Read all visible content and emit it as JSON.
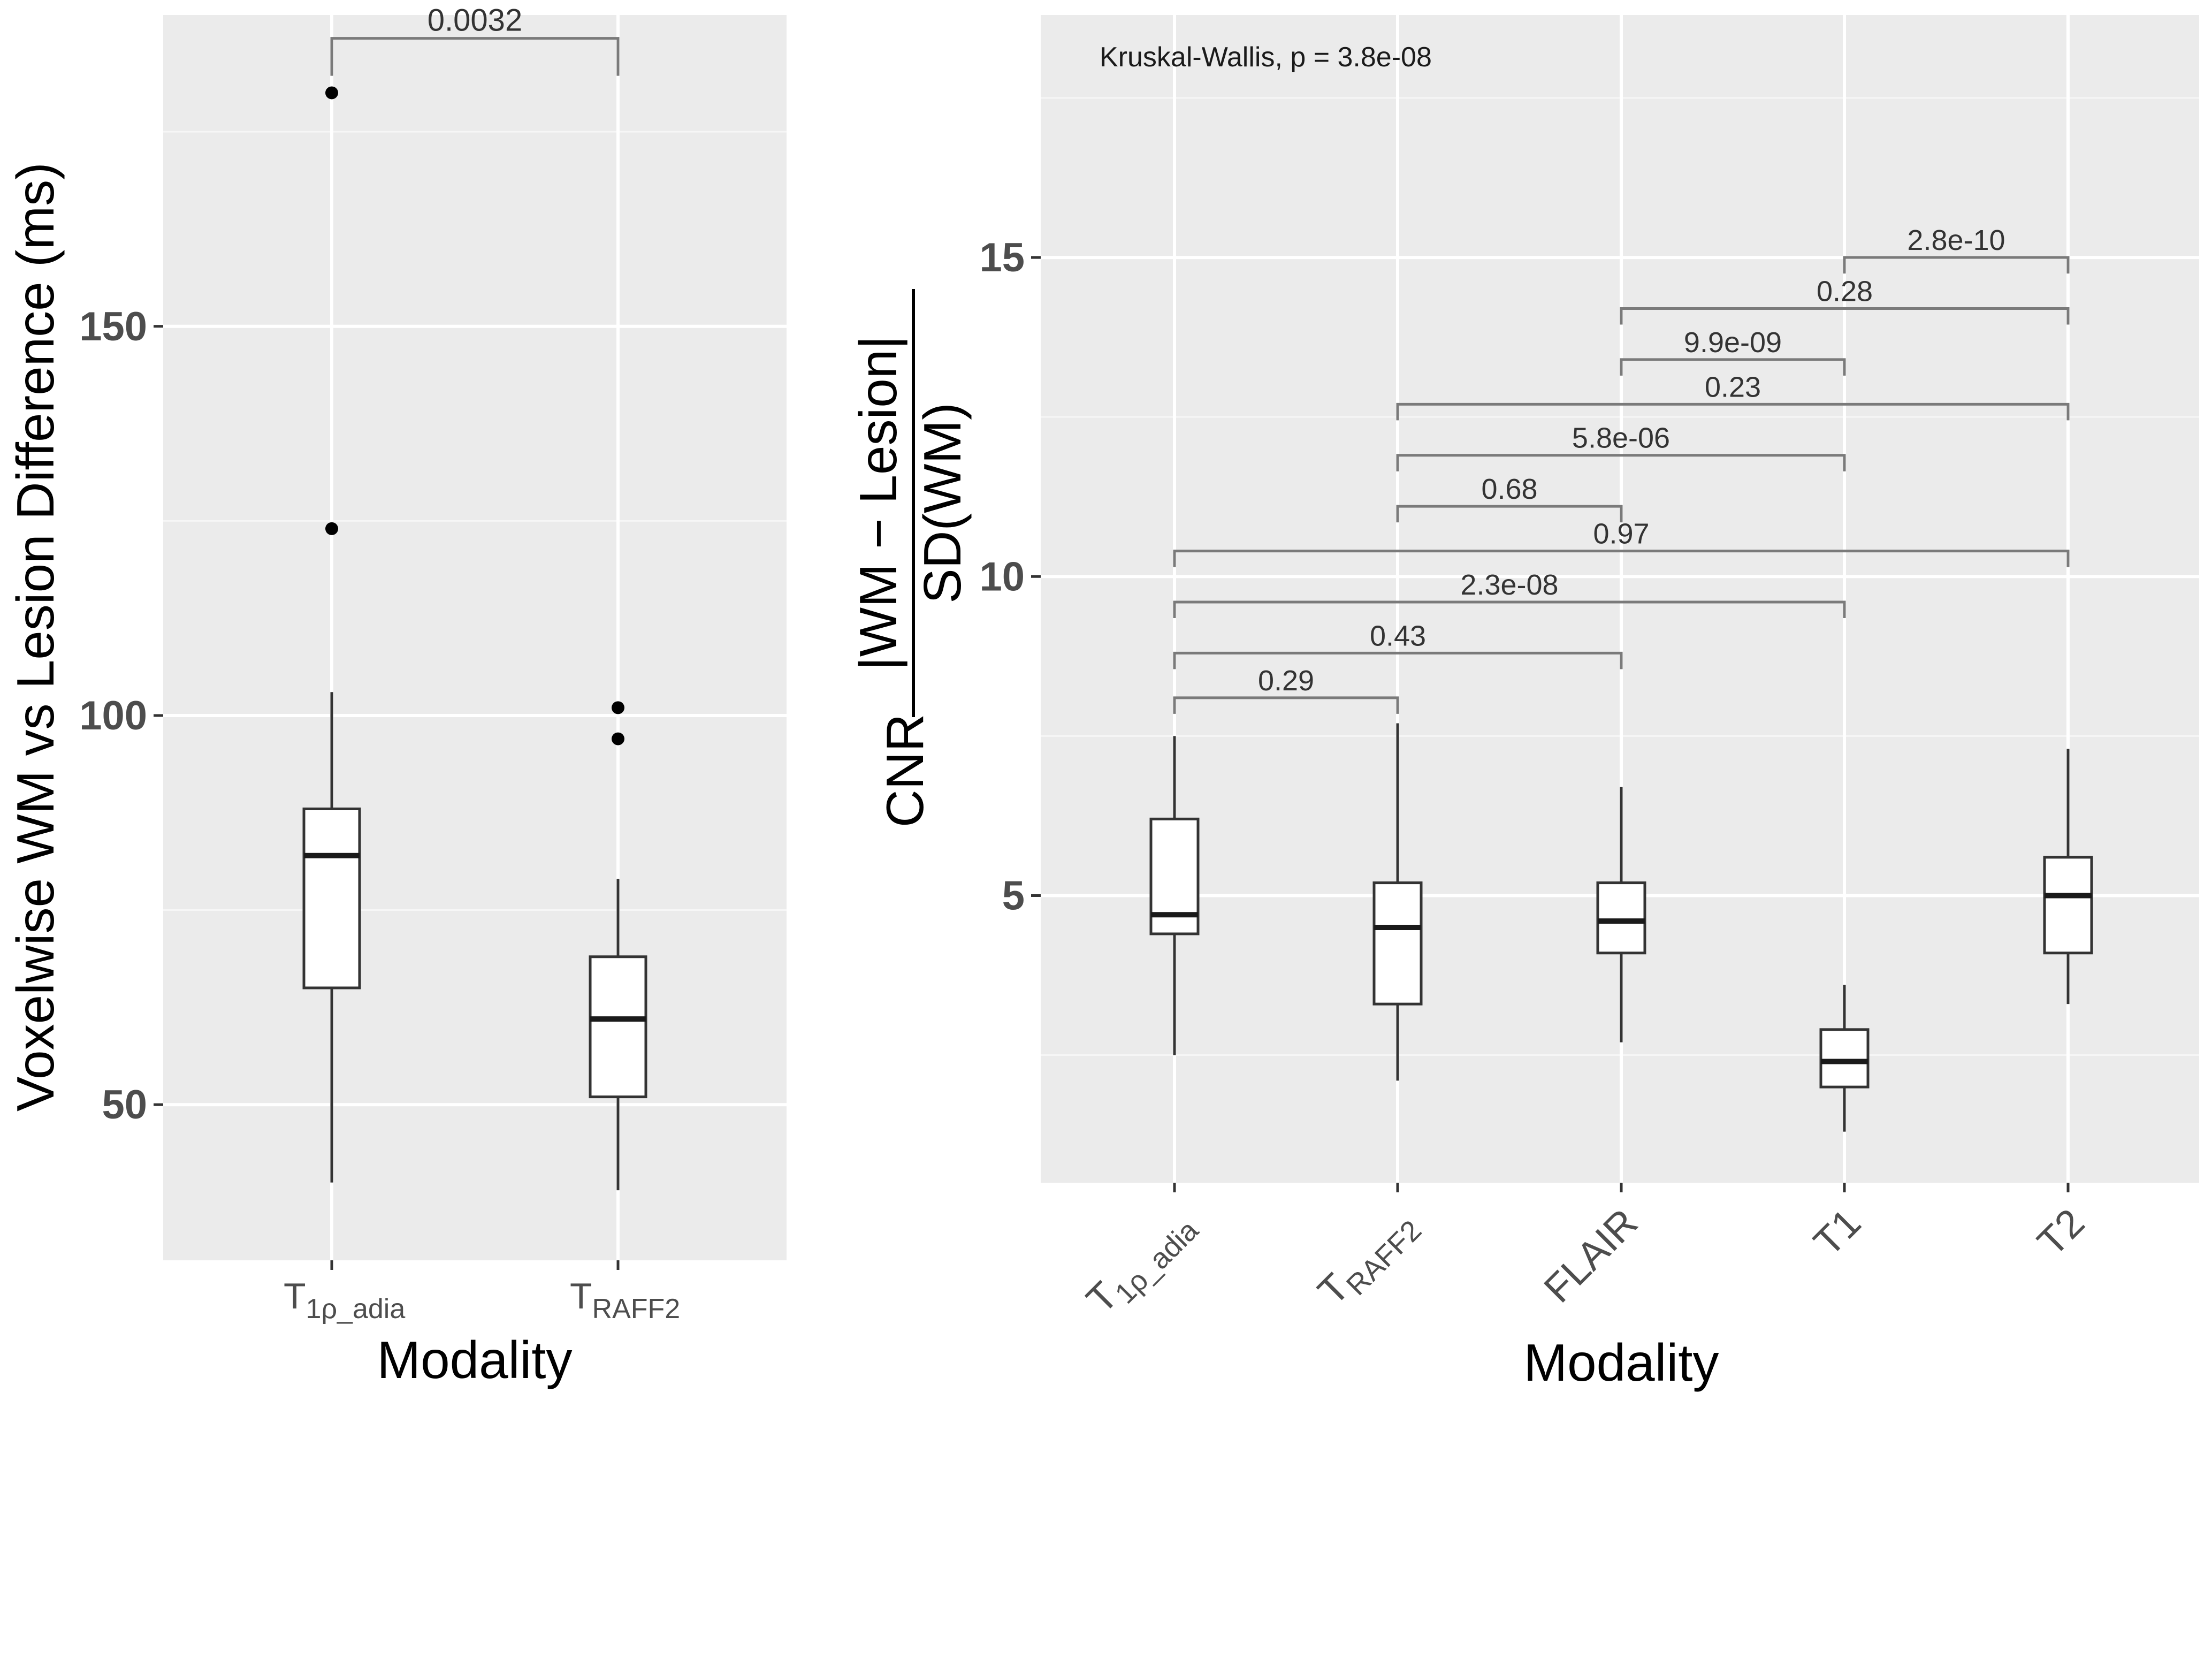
{
  "chart_data": [
    {
      "type": "box",
      "title": "",
      "xlabel": "Modality",
      "ylabel": "Voxelwise WM vs Lesion Difference (ms)",
      "ylim": [
        30,
        190
      ],
      "yticks": [
        50,
        100,
        150
      ],
      "grid": true,
      "categories": [
        {
          "main": "T",
          "sub": "1ρ_adia"
        },
        {
          "main": "T",
          "sub": "RAFF2"
        }
      ],
      "boxes": [
        {
          "whisker_low": 40,
          "q1": 65,
          "median": 82,
          "q3": 88,
          "whisker_high": 103,
          "outliers": [
            124,
            180
          ]
        },
        {
          "whisker_low": 39,
          "q1": 51,
          "median": 61,
          "q3": 69,
          "whisker_high": 79,
          "outliers": [
            97,
            101
          ]
        }
      ],
      "comparisons": [
        {
          "from": 0,
          "to": 1,
          "y": 187,
          "label": "0.0032"
        }
      ]
    },
    {
      "type": "box",
      "title": "",
      "xlabel": "Modality",
      "ylabel_prefix": "CNR",
      "ylabel_numerator": "|WM − Lesion|",
      "ylabel_denominator": "SD(WM)",
      "ylim": [
        0.5,
        18.8
      ],
      "yticks": [
        5,
        10,
        15
      ],
      "grid": true,
      "annotation": "Kruskal-Wallis, p = 3.8e-08",
      "categories": [
        {
          "main": "T",
          "sub": "1ρ_adia"
        },
        {
          "main": "T",
          "sub": "RAFF2"
        },
        {
          "main": "FLAIR",
          "sub": ""
        },
        {
          "main": "T1",
          "sub": ""
        },
        {
          "main": "T2",
          "sub": ""
        }
      ],
      "boxes": [
        {
          "whisker_low": 2.5,
          "q1": 4.4,
          "median": 4.7,
          "q3": 6.2,
          "whisker_high": 7.5,
          "outliers": []
        },
        {
          "whisker_low": 2.1,
          "q1": 3.3,
          "median": 4.5,
          "q3": 5.2,
          "whisker_high": 7.7,
          "outliers": []
        },
        {
          "whisker_low": 2.7,
          "q1": 4.1,
          "median": 4.6,
          "q3": 5.2,
          "whisker_high": 6.7,
          "outliers": []
        },
        {
          "whisker_low": 1.3,
          "q1": 2.0,
          "median": 2.4,
          "q3": 2.9,
          "whisker_high": 3.6,
          "outliers": []
        },
        {
          "whisker_low": 3.3,
          "q1": 4.1,
          "median": 5.0,
          "q3": 5.6,
          "whisker_high": 7.3,
          "outliers": []
        }
      ],
      "comparisons": [
        {
          "from": 0,
          "to": 1,
          "y": 8.1,
          "label": "0.29"
        },
        {
          "from": 0,
          "to": 2,
          "y": 8.8,
          "label": "0.43"
        },
        {
          "from": 0,
          "to": 3,
          "y": 9.6,
          "label": "2.3e-08"
        },
        {
          "from": 0,
          "to": 4,
          "y": 10.4,
          "label": "0.97"
        },
        {
          "from": 1,
          "to": 2,
          "y": 11.1,
          "label": "0.68"
        },
        {
          "from": 1,
          "to": 3,
          "y": 11.9,
          "label": "5.8e-06"
        },
        {
          "from": 1,
          "to": 4,
          "y": 12.7,
          "label": "0.23"
        },
        {
          "from": 2,
          "to": 3,
          "y": 13.4,
          "label": "9.9e-09"
        },
        {
          "from": 2,
          "to": 4,
          "y": 14.2,
          "label": "0.28"
        },
        {
          "from": 3,
          "to": 4,
          "y": 15.0,
          "label": "2.8e-10"
        }
      ]
    }
  ]
}
